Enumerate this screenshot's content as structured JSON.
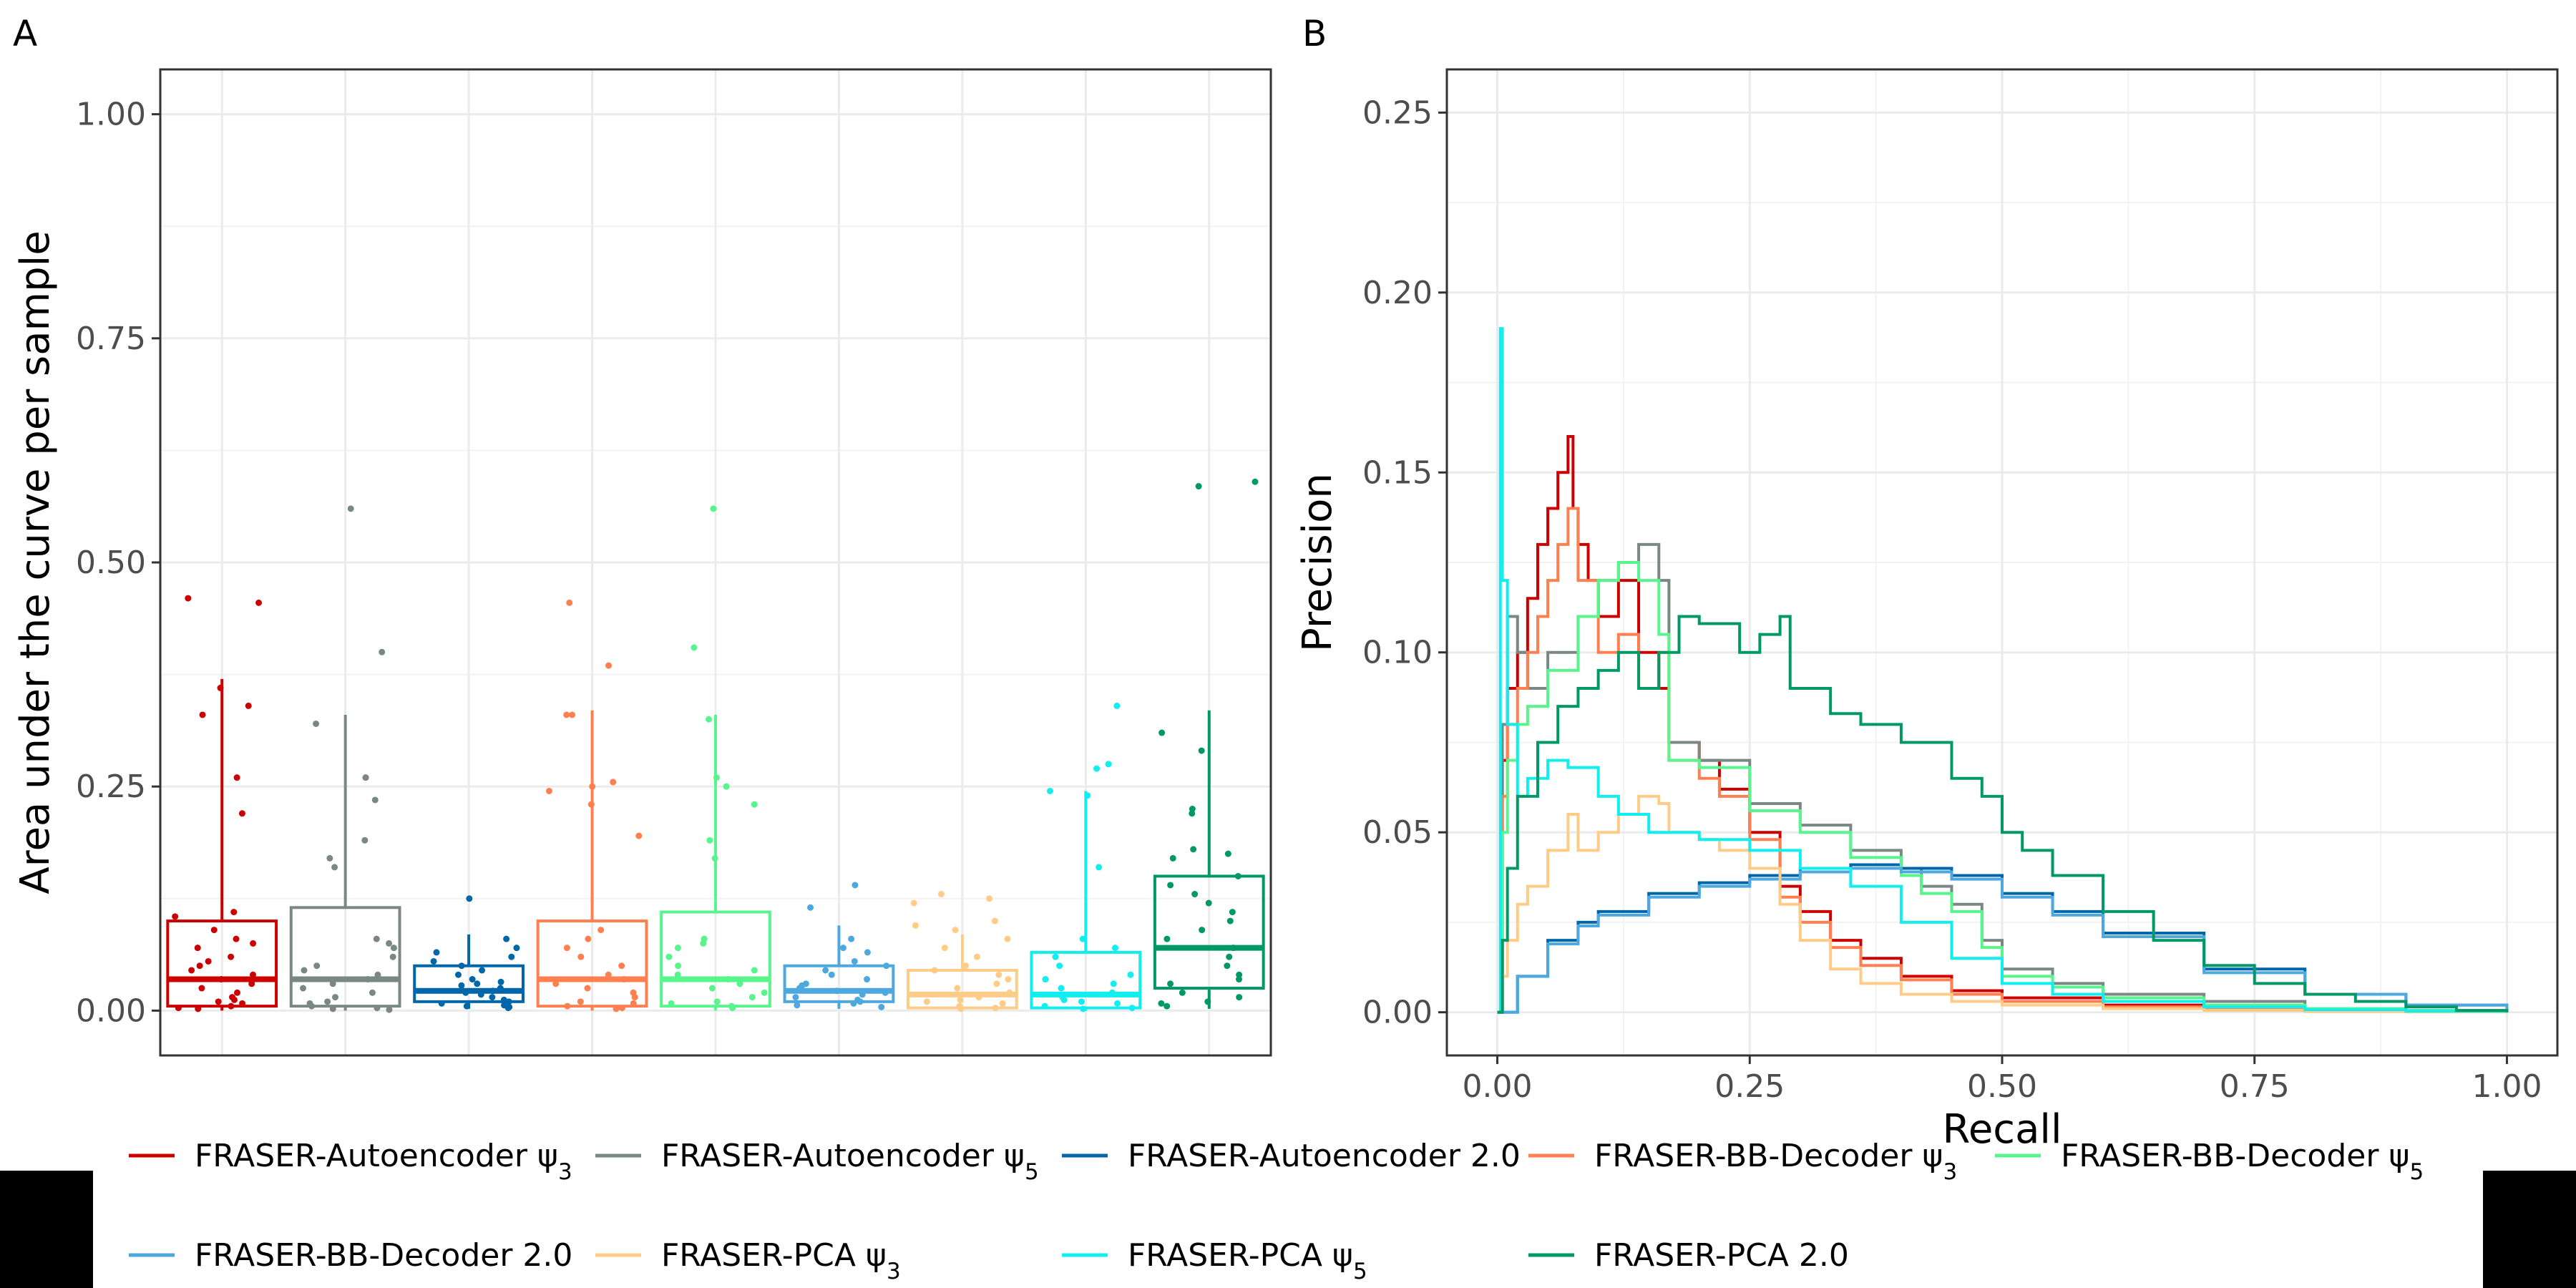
{
  "panels": {
    "a_letter": "A",
    "b_letter": "B"
  },
  "legend": {
    "items": [
      {
        "text": "FRASER-Autoencoder ψ",
        "sub": "3",
        "color": "#CC0000"
      },
      {
        "text": "FRASER-Autoencoder ψ",
        "sub": "5",
        "color": "#7A8883"
      },
      {
        "text": "FRASER-Autoencoder 2.0",
        "sub": "",
        "color": "#0066AA"
      },
      {
        "text": "FRASER-BB-Decoder ψ",
        "sub": "3",
        "color": "#FF7F50"
      },
      {
        "text": "FRASER-BB-Decoder ψ",
        "sub": "5",
        "color": "#57F58C"
      },
      {
        "text": "FRASER-BB-Decoder 2.0",
        "sub": "",
        "color": "#4DA8E0"
      },
      {
        "text": "FRASER-PCA ψ",
        "sub": "3",
        "color": "#FFCC88"
      },
      {
        "text": "FRASER-PCA ψ",
        "sub": "5",
        "color": "#11EEF0"
      },
      {
        "text": "FRASER-PCA 2.0",
        "sub": "",
        "color": "#009966"
      }
    ]
  },
  "chart_data": [
    {
      "panel": "A",
      "type": "box",
      "ylabel": "Area under the curve per sample",
      "xlabel": "",
      "ylim": [
        -0.05,
        1.05
      ],
      "yticks": [
        0.0,
        0.25,
        0.5,
        0.75,
        1.0
      ],
      "ytick_labels": [
        "0.00",
        "0.25",
        "0.50",
        "0.75",
        "1.00"
      ],
      "grid": true,
      "series": [
        {
          "name": "FRASER-Autoencoder ψ3",
          "color": "#CC0000",
          "box": {
            "q1": 0.005,
            "median": 0.035,
            "q3": 0.1,
            "whisker_low": 0.0,
            "whisker_high": 0.37
          },
          "points": [
            0.46,
            0.455,
            0.36,
            0.34,
            0.33,
            0.26,
            0.22,
            0.11,
            0.105,
            0.09,
            0.08,
            0.075,
            0.07,
            0.06,
            0.055,
            0.05,
            0.045,
            0.04,
            0.035,
            0.03,
            0.025,
            0.02,
            0.015,
            0.012,
            0.01,
            0.008,
            0.005,
            0.003,
            0.002
          ]
        },
        {
          "name": "FRASER-Autoencoder ψ5",
          "color": "#7A8883",
          "box": {
            "q1": 0.005,
            "median": 0.035,
            "q3": 0.115,
            "whisker_low": 0.0,
            "whisker_high": 0.33
          },
          "points": [
            0.56,
            0.4,
            0.32,
            0.26,
            0.26,
            0.235,
            0.19,
            0.17,
            0.16,
            0.08,
            0.075,
            0.07,
            0.06,
            0.05,
            0.045,
            0.04,
            0.035,
            0.03,
            0.025,
            0.02,
            0.015,
            0.01,
            0.008,
            0.005,
            0.003,
            0.002,
            0.001
          ]
        },
        {
          "name": "FRASER-Autoencoder 2.0",
          "color": "#0066AA",
          "box": {
            "q1": 0.01,
            "median": 0.022,
            "q3": 0.05,
            "whisker_low": 0.002,
            "whisker_high": 0.085
          },
          "points": [
            0.125,
            0.08,
            0.07,
            0.065,
            0.06,
            0.055,
            0.05,
            0.045,
            0.04,
            0.035,
            0.032,
            0.03,
            0.028,
            0.025,
            0.022,
            0.02,
            0.018,
            0.015,
            0.012,
            0.01,
            0.008,
            0.006,
            0.005,
            0.004,
            0.003
          ]
        },
        {
          "name": "FRASER-BB-Decoder ψ3",
          "color": "#FF7F50",
          "box": {
            "q1": 0.005,
            "median": 0.035,
            "q3": 0.1,
            "whisker_low": 0.0,
            "whisker_high": 0.335
          },
          "points": [
            0.455,
            0.385,
            0.33,
            0.33,
            0.255,
            0.25,
            0.245,
            0.23,
            0.195,
            0.09,
            0.08,
            0.07,
            0.06,
            0.05,
            0.04,
            0.035,
            0.03,
            0.025,
            0.02,
            0.015,
            0.01,
            0.008,
            0.005,
            0.003,
            0.002
          ]
        },
        {
          "name": "FRASER-BB-Decoder ψ5",
          "color": "#57F58C",
          "box": {
            "q1": 0.005,
            "median": 0.035,
            "q3": 0.11,
            "whisker_low": 0.0,
            "whisker_high": 0.33
          },
          "points": [
            0.56,
            0.405,
            0.325,
            0.26,
            0.25,
            0.23,
            0.19,
            0.17,
            0.08,
            0.075,
            0.07,
            0.06,
            0.05,
            0.045,
            0.04,
            0.035,
            0.03,
            0.025,
            0.02,
            0.015,
            0.01,
            0.008,
            0.005,
            0.003
          ]
        },
        {
          "name": "FRASER-BB-Decoder 2.0",
          "color": "#4DA8E0",
          "box": {
            "q1": 0.01,
            "median": 0.022,
            "q3": 0.05,
            "whisker_low": 0.002,
            "whisker_high": 0.095
          },
          "points": [
            0.14,
            0.115,
            0.08,
            0.07,
            0.065,
            0.055,
            0.05,
            0.045,
            0.04,
            0.035,
            0.03,
            0.028,
            0.025,
            0.022,
            0.02,
            0.018,
            0.015,
            0.012,
            0.01,
            0.008,
            0.006,
            0.004
          ]
        },
        {
          "name": "FRASER-PCA ψ3",
          "color": "#FFCC88",
          "box": {
            "q1": 0.003,
            "median": 0.018,
            "q3": 0.045,
            "whisker_low": 0.0,
            "whisker_high": 0.085
          },
          "points": [
            0.125,
            0.13,
            0.12,
            0.1,
            0.095,
            0.09,
            0.08,
            0.07,
            0.06,
            0.05,
            0.045,
            0.04,
            0.035,
            0.03,
            0.025,
            0.02,
            0.015,
            0.012,
            0.01,
            0.008,
            0.005,
            0.003,
            0.002
          ]
        },
        {
          "name": "FRASER-PCA ψ5",
          "color": "#11EEF0",
          "box": {
            "q1": 0.003,
            "median": 0.018,
            "q3": 0.065,
            "whisker_low": 0.0,
            "whisker_high": 0.245
          },
          "points": [
            0.34,
            0.275,
            0.27,
            0.245,
            0.24,
            0.16,
            0.08,
            0.07,
            0.06,
            0.05,
            0.04,
            0.035,
            0.03,
            0.025,
            0.02,
            0.015,
            0.012,
            0.01,
            0.008,
            0.005,
            0.003,
            0.002
          ]
        },
        {
          "name": "FRASER-PCA 2.0",
          "color": "#009966",
          "box": {
            "q1": 0.025,
            "median": 0.07,
            "q3": 0.15,
            "whisker_low": 0.002,
            "whisker_high": 0.335
          },
          "points": [
            0.59,
            0.585,
            0.31,
            0.29,
            0.225,
            0.22,
            0.18,
            0.175,
            0.17,
            0.15,
            0.14,
            0.13,
            0.12,
            0.11,
            0.1,
            0.09,
            0.08,
            0.07,
            0.06,
            0.05,
            0.04,
            0.035,
            0.03,
            0.02,
            0.015,
            0.01,
            0.008,
            0.005
          ]
        }
      ]
    },
    {
      "panel": "B",
      "type": "line",
      "xlabel": "Recall",
      "ylabel": "Precision",
      "xlim": [
        -0.05,
        1.05
      ],
      "ylim": [
        -0.012,
        0.262
      ],
      "xticks": [
        0.0,
        0.25,
        0.5,
        0.75,
        1.0
      ],
      "xtick_labels": [
        "0.00",
        "0.25",
        "0.50",
        "0.75",
        "1.00"
      ],
      "yticks": [
        0.0,
        0.05,
        0.1,
        0.15,
        0.2,
        0.25
      ],
      "ytick_labels": [
        "0.00",
        "0.05",
        "0.10",
        "0.15",
        "0.20",
        "0.25"
      ],
      "grid": true,
      "series": [
        {
          "name": "FRASER-Autoencoder ψ3",
          "color": "#CC0000",
          "x": [
            0,
            0.005,
            0.01,
            0.02,
            0.03,
            0.04,
            0.05,
            0.06,
            0.07,
            0.075,
            0.08,
            0.09,
            0.1,
            0.12,
            0.14,
            0.16,
            0.17,
            0.2,
            0.22,
            0.25,
            0.28,
            0.3,
            0.33,
            0.36,
            0.4,
            0.45,
            0.5,
            0.6,
            0.7,
            0.8,
            0.9,
            1.0
          ],
          "y": [
            0,
            0.07,
            0.09,
            0.1,
            0.115,
            0.13,
            0.14,
            0.15,
            0.16,
            0.14,
            0.13,
            0.12,
            0.11,
            0.12,
            0.1,
            0.09,
            0.075,
            0.07,
            0.062,
            0.05,
            0.035,
            0.028,
            0.02,
            0.015,
            0.01,
            0.006,
            0.004,
            0.002,
            0.001,
            0.0005,
            0.0002,
            0
          ]
        },
        {
          "name": "FRASER-Autoencoder ψ5",
          "color": "#7A8883",
          "x": [
            0,
            0.005,
            0.01,
            0.02,
            0.03,
            0.05,
            0.08,
            0.1,
            0.12,
            0.14,
            0.16,
            0.17,
            0.2,
            0.25,
            0.3,
            0.35,
            0.4,
            0.42,
            0.45,
            0.48,
            0.5,
            0.55,
            0.6,
            0.7,
            0.8,
            0.9,
            1.0
          ],
          "y": [
            0,
            0.08,
            0.11,
            0.1,
            0.09,
            0.1,
            0.11,
            0.12,
            0.125,
            0.13,
            0.12,
            0.075,
            0.07,
            0.058,
            0.052,
            0.045,
            0.04,
            0.035,
            0.03,
            0.02,
            0.012,
            0.008,
            0.005,
            0.003,
            0.001,
            0.0005,
            0
          ]
        },
        {
          "name": "FRASER-Autoencoder 2.0",
          "color": "#0066AA",
          "x": [
            0,
            0.02,
            0.05,
            0.08,
            0.1,
            0.15,
            0.2,
            0.25,
            0.3,
            0.35,
            0.4,
            0.45,
            0.5,
            0.55,
            0.6,
            0.7,
            0.8,
            0.9,
            1.0
          ],
          "y": [
            0,
            0.01,
            0.02,
            0.025,
            0.028,
            0.033,
            0.036,
            0.038,
            0.04,
            0.041,
            0.04,
            0.038,
            0.033,
            0.028,
            0.022,
            0.012,
            0.005,
            0.002,
            0
          ]
        },
        {
          "name": "FRASER-BB-Decoder ψ3",
          "color": "#FF7F50",
          "x": [
            0,
            0.005,
            0.01,
            0.02,
            0.03,
            0.04,
            0.05,
            0.06,
            0.07,
            0.08,
            0.1,
            0.12,
            0.14,
            0.16,
            0.17,
            0.2,
            0.22,
            0.25,
            0.28,
            0.3,
            0.33,
            0.36,
            0.4,
            0.45,
            0.5,
            0.6,
            0.7,
            0.8,
            0.9,
            1.0
          ],
          "y": [
            0,
            0.06,
            0.08,
            0.09,
            0.1,
            0.11,
            0.12,
            0.13,
            0.14,
            0.12,
            0.1,
            0.105,
            0.09,
            0.1,
            0.07,
            0.065,
            0.06,
            0.048,
            0.032,
            0.025,
            0.018,
            0.013,
            0.009,
            0.005,
            0.003,
            0.0015,
            0.0008,
            0.0004,
            0.0002,
            0
          ]
        },
        {
          "name": "FRASER-BB-Decoder ψ5",
          "color": "#57F58C",
          "x": [
            0,
            0.005,
            0.01,
            0.02,
            0.03,
            0.05,
            0.08,
            0.1,
            0.12,
            0.14,
            0.16,
            0.17,
            0.2,
            0.25,
            0.3,
            0.35,
            0.4,
            0.42,
            0.45,
            0.48,
            0.5,
            0.55,
            0.6,
            0.7,
            0.8,
            0.9,
            1.0
          ],
          "y": [
            0,
            0.05,
            0.07,
            0.08,
            0.085,
            0.095,
            0.11,
            0.12,
            0.125,
            0.12,
            0.105,
            0.07,
            0.068,
            0.056,
            0.05,
            0.043,
            0.038,
            0.033,
            0.028,
            0.018,
            0.01,
            0.007,
            0.004,
            0.002,
            0.001,
            0.0005,
            0
          ]
        },
        {
          "name": "FRASER-BB-Decoder 2.0",
          "color": "#4DA8E0",
          "x": [
            0,
            0.02,
            0.05,
            0.08,
            0.1,
            0.15,
            0.2,
            0.25,
            0.3,
            0.35,
            0.4,
            0.45,
            0.5,
            0.55,
            0.6,
            0.7,
            0.8,
            0.9,
            1.0
          ],
          "y": [
            0,
            0.01,
            0.019,
            0.024,
            0.027,
            0.032,
            0.035,
            0.037,
            0.039,
            0.04,
            0.039,
            0.037,
            0.032,
            0.027,
            0.021,
            0.011,
            0.005,
            0.002,
            0
          ]
        },
        {
          "name": "FRASER-PCA ψ3",
          "color": "#FFCC88",
          "x": [
            0,
            0.005,
            0.01,
            0.02,
            0.03,
            0.05,
            0.07,
            0.08,
            0.1,
            0.12,
            0.14,
            0.16,
            0.17,
            0.2,
            0.22,
            0.25,
            0.28,
            0.3,
            0.33,
            0.36,
            0.4,
            0.45,
            0.5,
            0.6,
            0.7,
            0.8,
            0.9,
            1.0
          ],
          "y": [
            0,
            0.01,
            0.02,
            0.03,
            0.035,
            0.045,
            0.055,
            0.045,
            0.05,
            0.055,
            0.06,
            0.058,
            0.05,
            0.048,
            0.045,
            0.04,
            0.03,
            0.02,
            0.012,
            0.008,
            0.005,
            0.003,
            0.002,
            0.001,
            0.0005,
            0.0002,
            0.0001,
            0
          ]
        },
        {
          "name": "FRASER-PCA ψ5",
          "color": "#11EEF0",
          "x": [
            0,
            0.003,
            0.005,
            0.01,
            0.02,
            0.03,
            0.05,
            0.07,
            0.1,
            0.12,
            0.15,
            0.2,
            0.25,
            0.3,
            0.35,
            0.4,
            0.45,
            0.5,
            0.55,
            0.6,
            0.7,
            0.8,
            0.9,
            1.0
          ],
          "y": [
            0,
            0.19,
            0.12,
            0.08,
            0.06,
            0.065,
            0.07,
            0.068,
            0.06,
            0.055,
            0.05,
            0.048,
            0.045,
            0.04,
            0.035,
            0.025,
            0.015,
            0.008,
            0.005,
            0.003,
            0.0015,
            0.0007,
            0.0003,
            0
          ]
        },
        {
          "name": "FRASER-PCA 2.0",
          "color": "#009966",
          "x": [
            0,
            0.005,
            0.01,
            0.02,
            0.04,
            0.06,
            0.08,
            0.1,
            0.12,
            0.14,
            0.16,
            0.18,
            0.2,
            0.24,
            0.26,
            0.28,
            0.29,
            0.33,
            0.36,
            0.4,
            0.45,
            0.48,
            0.5,
            0.52,
            0.55,
            0.6,
            0.65,
            0.7,
            0.75,
            0.8,
            0.85,
            0.9,
            0.95,
            1.0
          ],
          "y": [
            0,
            0.02,
            0.04,
            0.06,
            0.075,
            0.085,
            0.09,
            0.095,
            0.1,
            0.09,
            0.1,
            0.11,
            0.108,
            0.1,
            0.105,
            0.11,
            0.09,
            0.083,
            0.08,
            0.075,
            0.065,
            0.06,
            0.05,
            0.045,
            0.038,
            0.028,
            0.02,
            0.013,
            0.008,
            0.005,
            0.003,
            0.0015,
            0.0005,
            0
          ]
        }
      ]
    }
  ]
}
